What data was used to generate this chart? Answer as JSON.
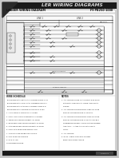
{
  "bg_color": "#c8c8c8",
  "page_color": "#e8e8e8",
  "title": "LER WIRING DIAGRAMS",
  "subtitle_left": "LADDER WIRING DIAGRAM",
  "subtitle_right": "F9 PB250-1000",
  "header_dark": "#1a1a1a",
  "header_text_color": "#dddddd",
  "white": "#ffffff",
  "line_color": "#333333",
  "light_line": "#888888",
  "footer_dark": "#1a1a1a",
  "corner_color": "#2a2a2a",
  "logo_color": "#444444",
  "diagram_bg": "#f5f5f5",
  "text_dark": "#111111",
  "text_mid": "#333333",
  "pdf_badge_bg": "#2c5f8a",
  "pdf_badge_text": "#ffffff"
}
